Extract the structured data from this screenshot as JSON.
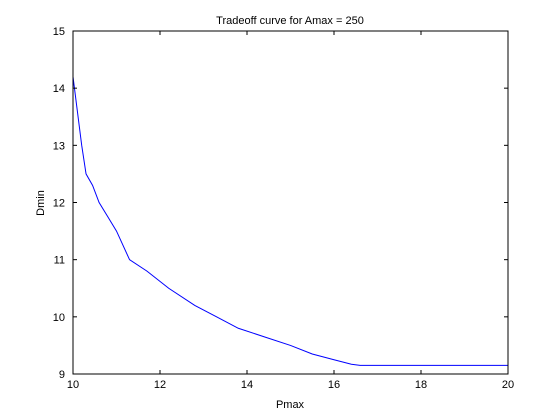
{
  "chart_data": {
    "type": "line",
    "title": "Tradeoff curve for Amax = 250",
    "xlabel": "Pmax",
    "ylabel": "Dmin",
    "xlim": [
      10,
      20
    ],
    "ylim": [
      9,
      15
    ],
    "xticks": [
      "10",
      "12",
      "14",
      "16",
      "18",
      "20"
    ],
    "yticks": [
      "9",
      "10",
      "11",
      "12",
      "13",
      "14",
      "15"
    ],
    "grid": false,
    "legend": "none",
    "series": [
      {
        "color": "#0000ff",
        "x": [
          10.0,
          10.1,
          10.2,
          10.3,
          10.45,
          10.6,
          10.8,
          11.0,
          11.3,
          11.7,
          12.2,
          12.8,
          13.3,
          13.8,
          14.4,
          15.0,
          15.5,
          16.0,
          16.4,
          16.6,
          17.0,
          18.0,
          19.0,
          20.0
        ],
        "y": [
          14.2,
          13.6,
          13.0,
          12.5,
          12.3,
          12.0,
          11.75,
          11.5,
          11.0,
          10.8,
          10.5,
          10.2,
          10.0,
          9.8,
          9.65,
          9.5,
          9.35,
          9.25,
          9.17,
          9.15,
          9.15,
          9.15,
          9.15,
          9.15
        ]
      }
    ]
  }
}
